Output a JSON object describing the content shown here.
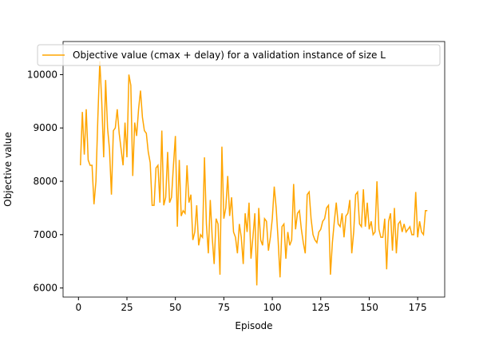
{
  "chart_data": {
    "type": "line",
    "xlabel": "Episode",
    "ylabel": "Objective value",
    "x": [
      1,
      2,
      3,
      4,
      5,
      6,
      7,
      8,
      9,
      10,
      11,
      12,
      13,
      14,
      15,
      16,
      17,
      18,
      19,
      20,
      21,
      22,
      23,
      24,
      25,
      26,
      27,
      28,
      29,
      30,
      31,
      32,
      33,
      34,
      35,
      36,
      37,
      38,
      39,
      40,
      41,
      42,
      43,
      44,
      45,
      46,
      47,
      48,
      49,
      50,
      51,
      52,
      53,
      54,
      55,
      56,
      57,
      58,
      59,
      60,
      61,
      62,
      63,
      64,
      65,
      66,
      67,
      68,
      69,
      70,
      71,
      72,
      73,
      74,
      75,
      76,
      77,
      78,
      79,
      80,
      81,
      82,
      83,
      84,
      85,
      86,
      87,
      88,
      89,
      90,
      91,
      92,
      93,
      94,
      95,
      96,
      97,
      98,
      99,
      100,
      101,
      102,
      103,
      104,
      105,
      106,
      107,
      108,
      109,
      110,
      111,
      112,
      113,
      114,
      115,
      116,
      117,
      118,
      119,
      120,
      121,
      122,
      123,
      124,
      125,
      126,
      127,
      128,
      129,
      130,
      131,
      132,
      133,
      134,
      135,
      136,
      137,
      138,
      139,
      140,
      141,
      142,
      143,
      144,
      145,
      146,
      147,
      148,
      149,
      150,
      151,
      152,
      153,
      154,
      155,
      156,
      157,
      158,
      159,
      160,
      161,
      162,
      163,
      164,
      165,
      166,
      167,
      168,
      169,
      170,
      171,
      172,
      173,
      174,
      175,
      176,
      177,
      178,
      179,
      180
    ],
    "series": [
      {
        "name": "Objective value (cmax + delay) for a validation instance of size L",
        "color": "#ffa500",
        "values": [
          8300,
          9300,
          8500,
          9350,
          8400,
          8300,
          8300,
          7570,
          8000,
          9200,
          10250,
          9500,
          8450,
          9900,
          9000,
          8600,
          7750,
          8950,
          9000,
          9350,
          8900,
          8600,
          8300,
          9100,
          8450,
          10000,
          9800,
          8100,
          9100,
          8850,
          9350,
          9700,
          9200,
          8950,
          8900,
          8550,
          8350,
          7550,
          7550,
          8250,
          8300,
          7600,
          8950,
          7550,
          7700,
          8550,
          7600,
          7700,
          8300,
          8850,
          7150,
          8400,
          7350,
          7450,
          7400,
          8300,
          7600,
          7750,
          6900,
          7050,
          7550,
          6800,
          7000,
          6950,
          8450,
          7200,
          6650,
          7650,
          6950,
          6450,
          7300,
          7200,
          6250,
          8650,
          7300,
          7500,
          8100,
          7350,
          7700,
          7050,
          6950,
          6650,
          7200,
          6950,
          6450,
          7400,
          7050,
          7600,
          6550,
          6950,
          7400,
          6050,
          7500,
          6900,
          6800,
          7300,
          7250,
          6700,
          6950,
          7300,
          7900,
          7500,
          6900,
          6200,
          7150,
          7200,
          6550,
          7050,
          6800,
          6900,
          7950,
          7100,
          7400,
          7450,
          7100,
          6850,
          6650,
          7750,
          7800,
          7300,
          7000,
          6900,
          6850,
          7050,
          7100,
          7250,
          7300,
          7500,
          7550,
          6250,
          6850,
          7250,
          7600,
          7200,
          7150,
          7400,
          6950,
          7350,
          7400,
          7650,
          6650,
          7050,
          7750,
          7800,
          7200,
          7150,
          7850,
          7150,
          7600,
          7100,
          7250,
          7000,
          7050,
          8000,
          7100,
          6950,
          6950,
          7300,
          6350,
          7250,
          7400,
          6700,
          7500,
          6650,
          7200,
          7250,
          7050,
          7200,
          7050,
          7100,
          7150,
          7000,
          7000,
          7800,
          6950,
          7250,
          7050,
          7000,
          7450,
          7450
        ]
      }
    ],
    "xlim": [
      -7.95,
      188.95
    ],
    "xticks": [
      0,
      25,
      50,
      75,
      100,
      125,
      150,
      175
    ],
    "ylim": [
      5830,
      10620
    ],
    "yticks": [
      6000,
      7000,
      8000,
      9000,
      10000
    ],
    "legend": "upper left"
  }
}
